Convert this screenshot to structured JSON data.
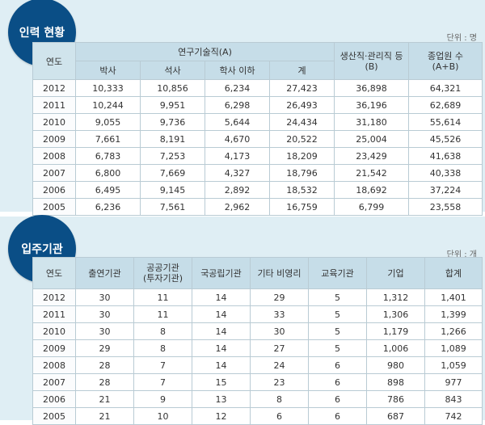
{
  "section1": {
    "badge": "인력 현황",
    "unit": "단위 : 명",
    "headers": {
      "year": "연도",
      "researchers": "연구기술직(A)",
      "phd": "박사",
      "masters": "석사",
      "bachelor_below": "학사 이하",
      "subtotal": "계",
      "production_line1": "생산직·관리직 등",
      "production_line2": "(B)",
      "employees_line1": "종업원 수",
      "employees_line2": "(A+B)"
    },
    "rows": [
      {
        "year": "2012",
        "phd": "10,333",
        "masters": "10,856",
        "bachelor_below": "6,234",
        "subtotal": "27,423",
        "production": "36,898",
        "employees": "64,321"
      },
      {
        "year": "2011",
        "phd": "10,244",
        "masters": "9,951",
        "bachelor_below": "6,298",
        "subtotal": "26,493",
        "production": "36,196",
        "employees": "62,689"
      },
      {
        "year": "2010",
        "phd": "9,055",
        "masters": "9,736",
        "bachelor_below": "5,644",
        "subtotal": "24,434",
        "production": "31,180",
        "employees": "55,614"
      },
      {
        "year": "2009",
        "phd": "7,661",
        "masters": "8,191",
        "bachelor_below": "4,670",
        "subtotal": "20,522",
        "production": "25,004",
        "employees": "45,526"
      },
      {
        "year": "2008",
        "phd": "6,783",
        "masters": "7,253",
        "bachelor_below": "4,173",
        "subtotal": "18,209",
        "production": "23,429",
        "employees": "41,638"
      },
      {
        "year": "2007",
        "phd": "6,800",
        "masters": "7,669",
        "bachelor_below": "4,327",
        "subtotal": "18,796",
        "production": "21,542",
        "employees": "40,338"
      },
      {
        "year": "2006",
        "phd": "6,495",
        "masters": "9,145",
        "bachelor_below": "2,892",
        "subtotal": "18,532",
        "production": "18,692",
        "employees": "37,224"
      },
      {
        "year": "2005",
        "phd": "6,236",
        "masters": "7,561",
        "bachelor_below": "2,962",
        "subtotal": "16,759",
        "production": "6,799",
        "employees": "23,558"
      }
    ]
  },
  "section2": {
    "badge": "입주기관",
    "unit": "단위 : 개",
    "headers": {
      "year": "연도",
      "research_institutes": "출연기관",
      "public_line1": "공공기관",
      "public_line2": "(투자기관)",
      "national_public": "국공립기관",
      "other_nonprofit": "기타 비영리",
      "education": "교육기관",
      "companies": "기업",
      "total": "합계"
    },
    "rows": [
      {
        "year": "2012",
        "research_institutes": "30",
        "public": "11",
        "national_public": "14",
        "other_nonprofit": "29",
        "education": "5",
        "companies": "1,312",
        "total": "1,401"
      },
      {
        "year": "2011",
        "research_institutes": "30",
        "public": "11",
        "national_public": "14",
        "other_nonprofit": "33",
        "education": "5",
        "companies": "1,306",
        "total": "1,399"
      },
      {
        "year": "2010",
        "research_institutes": "30",
        "public": "8",
        "national_public": "14",
        "other_nonprofit": "30",
        "education": "5",
        "companies": "1,179",
        "total": "1,266"
      },
      {
        "year": "2009",
        "research_institutes": "29",
        "public": "8",
        "national_public": "14",
        "other_nonprofit": "27",
        "education": "5",
        "companies": "1,006",
        "total": "1,089"
      },
      {
        "year": "2008",
        "research_institutes": "28",
        "public": "7",
        "national_public": "14",
        "other_nonprofit": "24",
        "education": "6",
        "companies": "980",
        "total": "1,059"
      },
      {
        "year": "2007",
        "research_institutes": "28",
        "public": "7",
        "national_public": "15",
        "other_nonprofit": "23",
        "education": "6",
        "companies": "898",
        "total": "977"
      },
      {
        "year": "2006",
        "research_institutes": "21",
        "public": "9",
        "national_public": "13",
        "other_nonprofit": "8",
        "education": "6",
        "companies": "786",
        "total": "843"
      },
      {
        "year": "2005",
        "research_institutes": "21",
        "public": "10",
        "national_public": "12",
        "other_nonprofit": "6",
        "education": "6",
        "companies": "687",
        "total": "742"
      }
    ]
  }
}
